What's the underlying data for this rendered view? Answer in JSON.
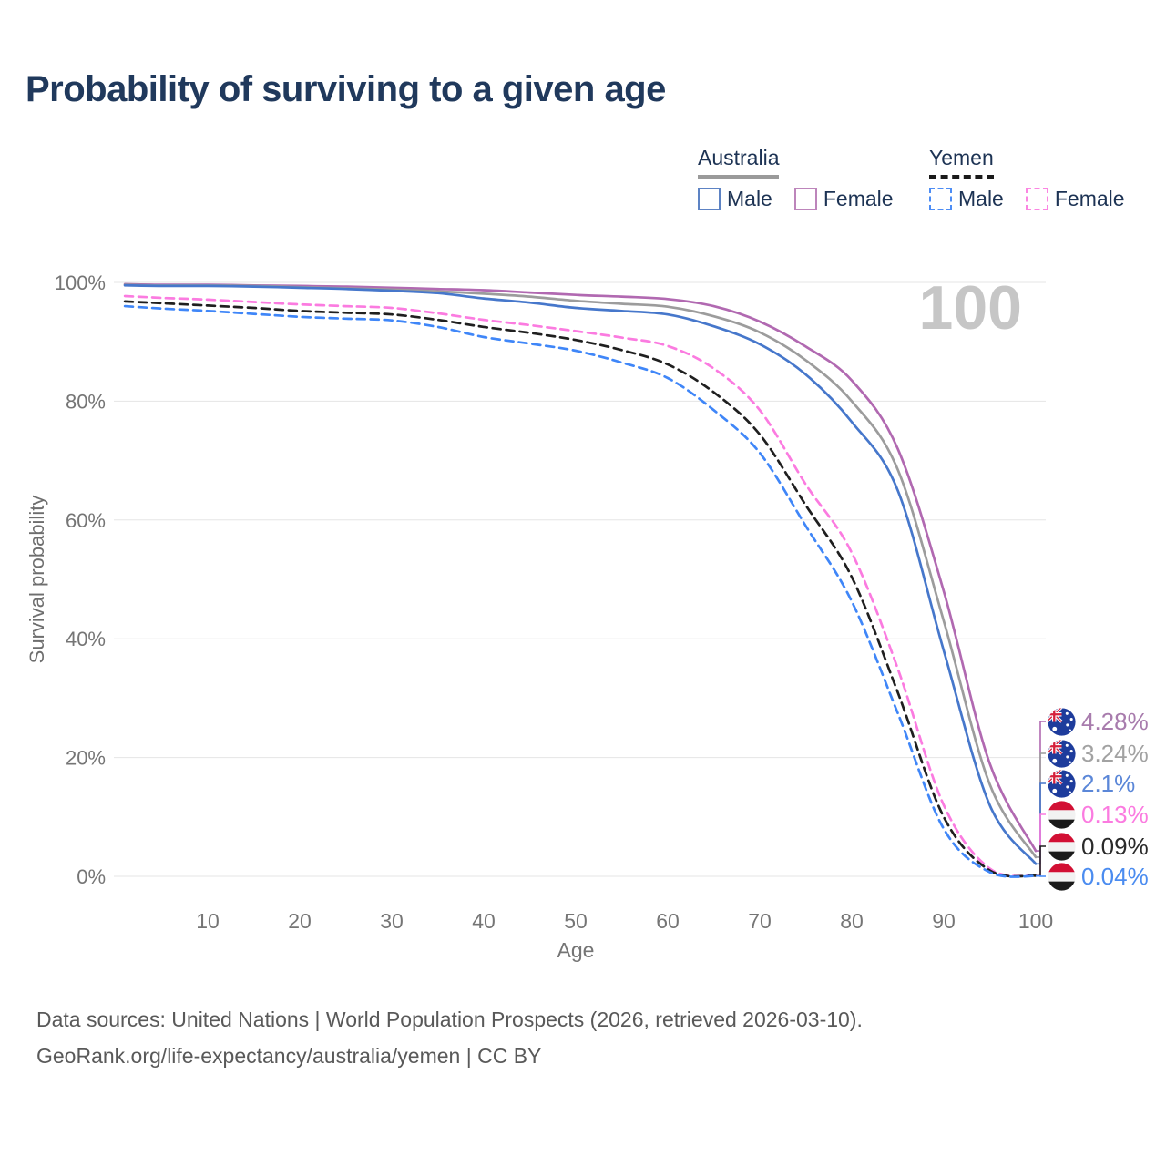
{
  "page_title": "Probability of surviving to a given age",
  "watermark": "100",
  "legend": {
    "groups": [
      {
        "id": "australia",
        "label": "Australia",
        "underline_style": "solid",
        "underline_color": "#9a9a9a",
        "items": [
          {
            "label": "Male",
            "color": "#5d83c4",
            "dash": false
          },
          {
            "label": "Female",
            "color": "#bd85bb",
            "dash": false
          }
        ]
      },
      {
        "id": "yemen",
        "label": "Yemen",
        "underline_style": "dashed",
        "underline_color": "#1a1a1a",
        "items": [
          {
            "label": "Male",
            "color": "#4d8df5",
            "dash": true
          },
          {
            "label": "Female",
            "color": "#fb85e2",
            "dash": true
          }
        ]
      }
    ]
  },
  "chart_data": {
    "type": "line",
    "title": "Probability of surviving to a given age",
    "xlabel": "Age",
    "ylabel": "Survival probability",
    "xlim": [
      0,
      100
    ],
    "ylim": [
      0,
      100
    ],
    "grid": "horizontal",
    "legend_position": "top-right",
    "x_ticks": [
      10,
      20,
      30,
      40,
      50,
      60,
      70,
      80,
      90,
      100
    ],
    "y_ticks": [
      {
        "value": 0,
        "label": "0%"
      },
      {
        "value": 20,
        "label": "20%"
      },
      {
        "value": 40,
        "label": "40%"
      },
      {
        "value": 60,
        "label": "60%"
      },
      {
        "value": 80,
        "label": "80%"
      },
      {
        "value": 100,
        "label": "100%"
      }
    ],
    "x": [
      1,
      5,
      10,
      15,
      20,
      25,
      30,
      35,
      40,
      45,
      50,
      55,
      60,
      65,
      70,
      75,
      80,
      85,
      90,
      95,
      100
    ],
    "series": [
      {
        "name": "Australia Female",
        "country": "Australia",
        "sex": "Female",
        "style": "solid",
        "color": "#b169b1",
        "label_color": "#a87cad",
        "flag_icon": "australia-flag-icon",
        "end_label": "4.28%",
        "values": [
          99.7,
          99.6,
          99.6,
          99.5,
          99.4,
          99.3,
          99.1,
          98.9,
          98.7,
          98.3,
          97.9,
          97.6,
          97.2,
          96.0,
          93.4,
          89.2,
          83.5,
          72,
          48,
          19,
          4.28
        ]
      },
      {
        "name": "Australia Both sexes",
        "country": "Australia",
        "sex": "Both",
        "style": "solid",
        "color": "#9c9c9c",
        "label_color": "#a2a2a2",
        "flag_icon": "australia-flag-icon",
        "end_label": "3.24%",
        "values": [
          99.6,
          99.5,
          99.5,
          99.4,
          99.2,
          99.0,
          98.8,
          98.5,
          98.1,
          97.6,
          96.9,
          96.4,
          95.9,
          94.3,
          91.6,
          86.9,
          80.0,
          68.5,
          43,
          15.5,
          3.24
        ]
      },
      {
        "name": "Australia Male",
        "country": "Australia",
        "sex": "Male",
        "style": "solid",
        "color": "#4677cb",
        "label_color": "#5b87d8",
        "flag_icon": "australia-flag-icon",
        "end_label": "2.1%",
        "values": [
          99.5,
          99.4,
          99.4,
          99.3,
          99.1,
          98.9,
          98.6,
          98.2,
          97.3,
          96.6,
          95.7,
          95.2,
          94.6,
          92.6,
          89.6,
          84.5,
          76.5,
          65,
          38,
          12,
          2.1
        ]
      },
      {
        "name": "Yemen Female",
        "country": "Yemen",
        "sex": "Female",
        "style": "dashed",
        "color": "#fb7be0",
        "label_color": "#fb7be0",
        "flag_icon": "yemen-flag-icon",
        "end_label": "0.13%",
        "values": [
          97.7,
          97.4,
          97.1,
          96.7,
          96.3,
          96.0,
          95.7,
          94.8,
          93.7,
          92.8,
          91.8,
          90.7,
          89.3,
          85.5,
          78.5,
          66,
          54.5,
          35,
          12,
          1.3,
          0.13
        ]
      },
      {
        "name": "Yemen Both sexes",
        "country": "Yemen",
        "sex": "Both",
        "style": "dashed",
        "color": "#1f1f1f",
        "label_color": "#2a2a2a",
        "flag_icon": "yemen-flag-icon",
        "end_label": "0.09%",
        "values": [
          96.8,
          96.5,
          96.1,
          95.7,
          95.2,
          94.9,
          94.6,
          93.7,
          92.5,
          91.5,
          90.3,
          88.6,
          86.2,
          81.5,
          74.4,
          62.5,
          50.4,
          31,
          10,
          1.0,
          0.09
        ]
      },
      {
        "name": "Yemen Male",
        "country": "Yemen",
        "sex": "Male",
        "style": "dashed",
        "color": "#3f86f8",
        "label_color": "#4b8cf0",
        "flag_icon": "yemen-flag-icon",
        "end_label": "0.04%",
        "values": [
          96.0,
          95.6,
          95.2,
          94.7,
          94.2,
          93.9,
          93.6,
          92.5,
          90.8,
          89.7,
          88.5,
          86.5,
          83.9,
          78.5,
          71.3,
          59,
          46.3,
          27.5,
          8,
          0.7,
          0.04
        ]
      }
    ]
  },
  "footer": {
    "line1": "Data sources: United Nations | World Population Prospects (2026, retrieved 2026-03-10).",
    "line2": "GeoRank.org/life-expectancy/australia/yemen | CC BY"
  }
}
